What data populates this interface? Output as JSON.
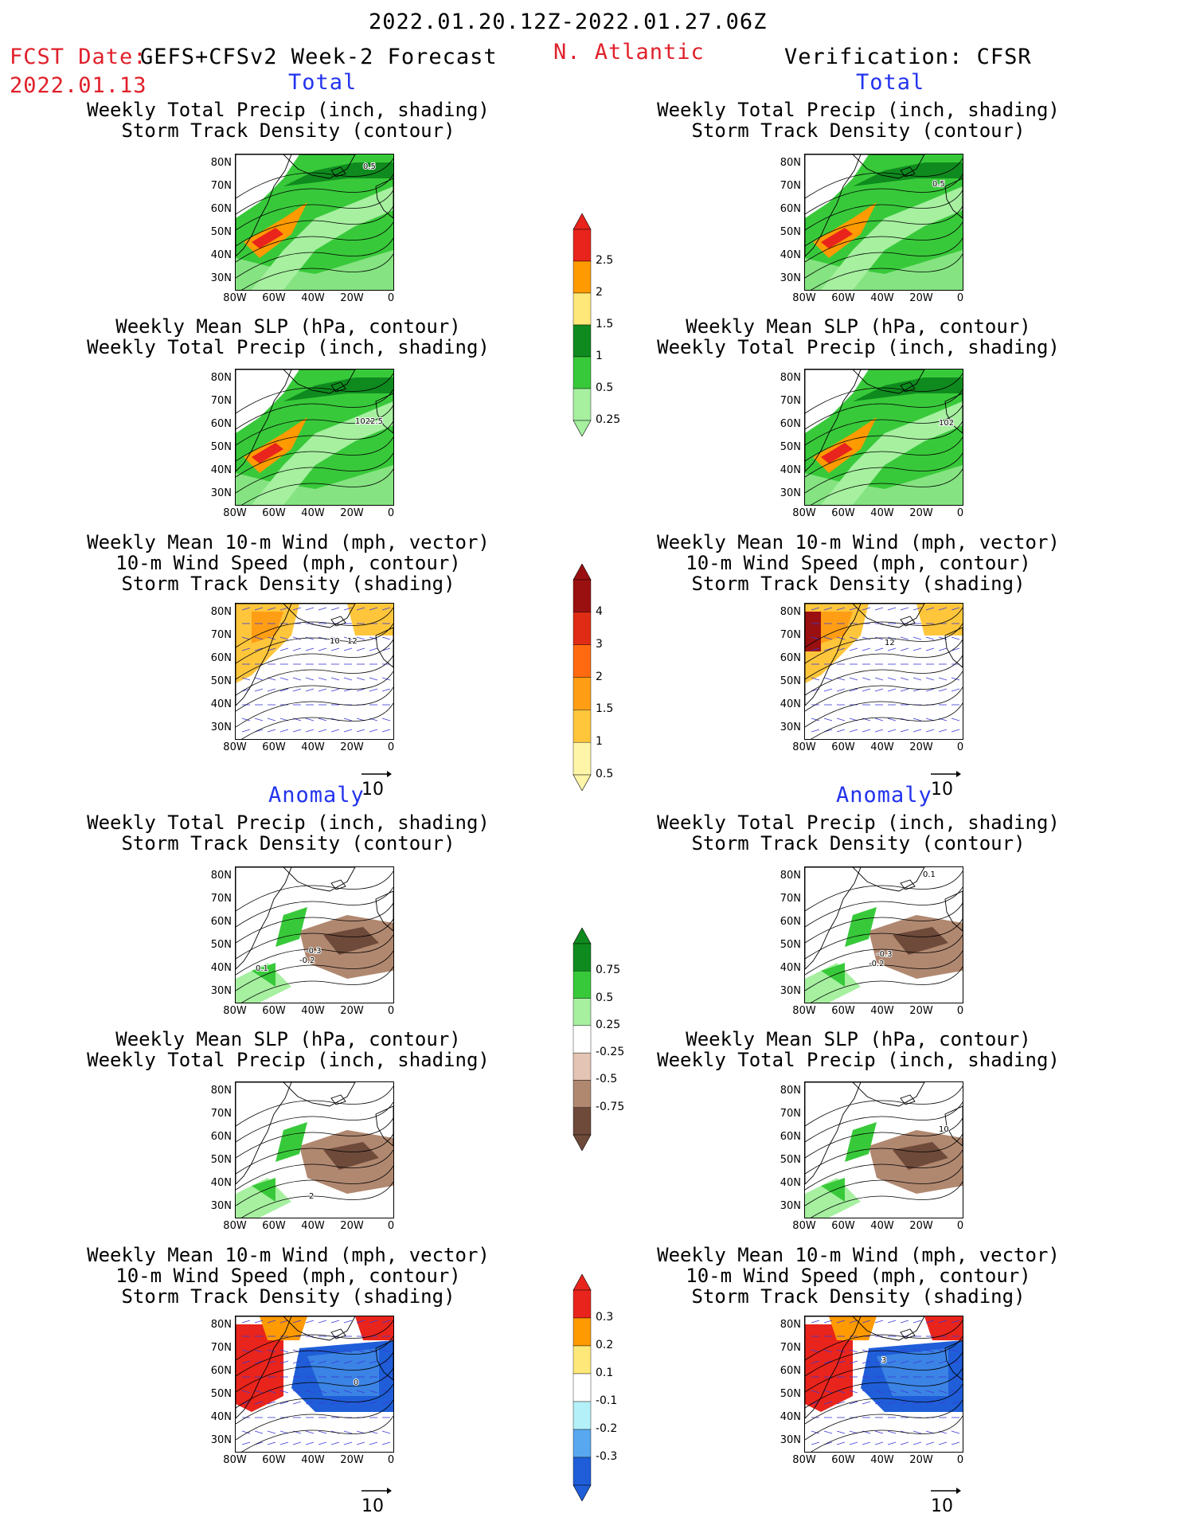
{
  "header": {
    "date_range": "2022.01.20.12Z-2022.01.27.06Z",
    "fcst_label": "FCST Date:",
    "fcst_model": "GEFS+CFSv2 Week-2 Forecast",
    "fcst_date": "2022.01.13",
    "region": "N. Atlantic",
    "verification": "Verification: CFSR"
  },
  "sections": {
    "total": "Total",
    "anomaly": "Anomaly"
  },
  "titles": {
    "precip_storm": [
      "Weekly Total Precip (inch, shading)",
      "Storm Track Density (contour)"
    ],
    "slp_precip": [
      "Weekly Mean SLP (hPa, contour)",
      "Weekly Total Precip (inch, shading)"
    ],
    "wind_storm": [
      "Weekly Mean 10-m Wind (mph, vector)",
      "10-m Wind Speed (mph, contour)",
      "Storm Track Density (shading)"
    ]
  },
  "axes": {
    "lat": [
      "80N",
      "70N",
      "60N",
      "50N",
      "40N",
      "30N"
    ],
    "lon": [
      "80W",
      "60W",
      "40W",
      "20W",
      "0"
    ]
  },
  "contour_labels": {
    "t_prec_l": "0.5",
    "t_prec_r": "0.5",
    "t_slp_l": "1022.5",
    "t_slp_r": "102",
    "a_prec_l1": "0.1",
    "a_prec_l2": "-0.3",
    "a_prec_l3": "-0.2",
    "a_prec_r1": "0.1",
    "a_prec_r2": "-0.3",
    "a_prec_r3": "-0.2",
    "a_slp_l": "2",
    "a_slp_r": "10",
    "a_wind_l": "0",
    "a_wind_r": "3",
    "t_wind_l1": "10",
    "t_wind_l2": "12",
    "t_wind_r": "12"
  },
  "vector_ref": "10",
  "colorbars": {
    "precip_total": {
      "labels": [
        "2.5",
        "2",
        "1.5",
        "1",
        "0.5",
        "0.25"
      ],
      "colors": [
        "#e8241c",
        "#ff9a00",
        "#ffe87a",
        "#0f8a1e",
        "#38c93a",
        "#a6f0a0"
      ]
    },
    "storm_total": {
      "labels": [
        "4",
        "3",
        "2",
        "1.5",
        "1",
        "0.5"
      ],
      "colors": [
        "#9a1010",
        "#e02c14",
        "#ff6a10",
        "#ff9e14",
        "#ffc63c",
        "#fff5a8"
      ]
    },
    "precip_anom": {
      "labels": [
        "0.75",
        "0.5",
        "0.25",
        "-0.25",
        "-0.5",
        "-0.75"
      ],
      "colors": [
        "#0f8a1e",
        "#38c93a",
        "#a6f0a0",
        "#ffffff",
        "#e4c4b4",
        "#b08870",
        "#6e4a3a"
      ]
    },
    "storm_anom": {
      "labels": [
        "0.3",
        "0.2",
        "0.1",
        "-0.1",
        "-0.2",
        "-0.3"
      ],
      "colors": [
        "#e8241c",
        "#ff9a00",
        "#ffe87a",
        "#ffffff",
        "#b4f0f8",
        "#58a8f0",
        "#1f5ed8"
      ]
    }
  }
}
